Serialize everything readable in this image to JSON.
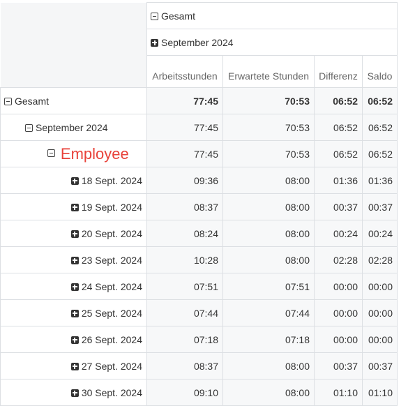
{
  "column_header": {
    "total_label": "Gesamt",
    "month_label": "September 2024",
    "measures": [
      "Arbeitsstunden",
      "Erwartete Stunden",
      "Differenz",
      "Saldo"
    ]
  },
  "rows": {
    "total": {
      "label": "Gesamt",
      "values": [
        "77:45",
        "70:53",
        "06:52",
        "06:52"
      ]
    },
    "month": {
      "label": "September 2024",
      "values": [
        "77:45",
        "70:53",
        "06:52",
        "06:52"
      ]
    },
    "employee": {
      "label": "Employee",
      "label_color": "#e8423a",
      "values": [
        "77:45",
        "70:53",
        "06:52",
        "06:52"
      ]
    },
    "days": [
      {
        "label": "18 Sept. 2024",
        "values": [
          "09:36",
          "08:00",
          "01:36",
          "01:36"
        ]
      },
      {
        "label": "19 Sept. 2024",
        "values": [
          "08:37",
          "08:00",
          "00:37",
          "00:37"
        ]
      },
      {
        "label": "20 Sept. 2024",
        "values": [
          "08:24",
          "08:00",
          "00:24",
          "00:24"
        ]
      },
      {
        "label": "23 Sept. 2024",
        "values": [
          "10:28",
          "08:00",
          "02:28",
          "02:28"
        ]
      },
      {
        "label": "24 Sept. 2024",
        "values": [
          "07:51",
          "07:51",
          "00:00",
          "00:00"
        ]
      },
      {
        "label": "25 Sept. 2024",
        "values": [
          "07:44",
          "07:44",
          "00:00",
          "00:00"
        ]
      },
      {
        "label": "26 Sept. 2024",
        "values": [
          "07:18",
          "07:18",
          "00:00",
          "00:00"
        ]
      },
      {
        "label": "27 Sept. 2024",
        "values": [
          "08:37",
          "08:00",
          "00:37",
          "00:37"
        ]
      },
      {
        "label": "30 Sept. 2024",
        "values": [
          "09:10",
          "08:00",
          "01:10",
          "01:10"
        ]
      }
    ]
  },
  "icons": {
    "collapse": "minus-square-icon",
    "expand": "plus-square-icon"
  }
}
